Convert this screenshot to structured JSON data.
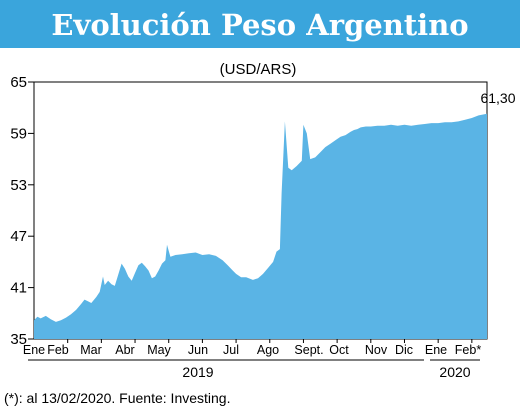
{
  "chart_data": {
    "type": "area",
    "title": "Evolución Peso Argentino",
    "subtitle": "(USD/ARS)",
    "ylim": [
      35,
      65
    ],
    "y_ticks": [
      35,
      41,
      47,
      53,
      59,
      65
    ],
    "y_tick_labels": [
      "35",
      "41",
      "47",
      "53",
      "59",
      "65"
    ],
    "month_labels": [
      "Ene",
      "Feb",
      "Mar",
      "Abr",
      "May",
      "Jun",
      "Jul",
      "Ago",
      "Sept.",
      "Oct",
      "Nov",
      "Dic",
      "Ene",
      "Feb*"
    ],
    "year_labels": [
      "2019",
      "2020"
    ],
    "last_value_label": "61,30",
    "footnote": "(*): al 13/02/2020. Fuente: Investing.",
    "area_color": "#5ab4e5",
    "title_bg": "#3aa5dc",
    "x_range": [
      0,
      13.45
    ],
    "series": [
      {
        "values": [
          [
            0.0,
            37.2
          ],
          [
            0.1,
            37.6
          ],
          [
            0.2,
            37.4
          ],
          [
            0.35,
            37.7
          ],
          [
            0.5,
            37.3
          ],
          [
            0.65,
            37.0
          ],
          [
            0.8,
            37.2
          ],
          [
            0.95,
            37.5
          ],
          [
            1.1,
            37.9
          ],
          [
            1.25,
            38.4
          ],
          [
            1.4,
            39.1
          ],
          [
            1.5,
            39.6
          ],
          [
            1.6,
            39.4
          ],
          [
            1.7,
            39.2
          ],
          [
            1.85,
            39.9
          ],
          [
            1.95,
            40.5
          ],
          [
            2.05,
            42.3
          ],
          [
            2.1,
            41.3
          ],
          [
            2.2,
            41.8
          ],
          [
            2.3,
            41.4
          ],
          [
            2.4,
            41.2
          ],
          [
            2.5,
            42.5
          ],
          [
            2.6,
            43.8
          ],
          [
            2.7,
            43.2
          ],
          [
            2.8,
            42.3
          ],
          [
            2.9,
            41.8
          ],
          [
            3.0,
            42.7
          ],
          [
            3.1,
            43.6
          ],
          [
            3.2,
            43.9
          ],
          [
            3.3,
            43.5
          ],
          [
            3.4,
            43.0
          ],
          [
            3.5,
            42.1
          ],
          [
            3.6,
            42.3
          ],
          [
            3.7,
            43.0
          ],
          [
            3.8,
            43.8
          ],
          [
            3.9,
            44.2
          ],
          [
            3.95,
            46.0
          ],
          [
            4.05,
            44.6
          ],
          [
            4.2,
            44.8
          ],
          [
            4.4,
            44.9
          ],
          [
            4.6,
            45.0
          ],
          [
            4.8,
            45.1
          ],
          [
            5.0,
            44.8
          ],
          [
            5.2,
            44.9
          ],
          [
            5.4,
            44.7
          ],
          [
            5.6,
            44.2
          ],
          [
            5.75,
            43.6
          ],
          [
            5.9,
            43.0
          ],
          [
            6.0,
            42.6
          ],
          [
            6.15,
            42.2
          ],
          [
            6.3,
            42.2
          ],
          [
            6.5,
            41.9
          ],
          [
            6.65,
            42.1
          ],
          [
            6.8,
            42.6
          ],
          [
            6.95,
            43.3
          ],
          [
            7.1,
            44.0
          ],
          [
            7.2,
            45.2
          ],
          [
            7.3,
            45.5
          ],
          [
            7.35,
            52.0
          ],
          [
            7.45,
            60.4
          ],
          [
            7.55,
            55.0
          ],
          [
            7.65,
            54.7
          ],
          [
            7.8,
            55.2
          ],
          [
            7.95,
            55.8
          ],
          [
            8.0,
            60.0
          ],
          [
            8.1,
            59.0
          ],
          [
            8.2,
            56.0
          ],
          [
            8.35,
            56.2
          ],
          [
            8.5,
            56.8
          ],
          [
            8.65,
            57.4
          ],
          [
            8.8,
            57.8
          ],
          [
            8.95,
            58.2
          ],
          [
            9.1,
            58.6
          ],
          [
            9.25,
            58.8
          ],
          [
            9.4,
            59.2
          ],
          [
            9.5,
            59.4
          ],
          [
            9.6,
            59.5
          ],
          [
            9.7,
            59.7
          ],
          [
            9.85,
            59.8
          ],
          [
            10.0,
            59.8
          ],
          [
            10.2,
            59.9
          ],
          [
            10.4,
            59.9
          ],
          [
            10.6,
            60.0
          ],
          [
            10.8,
            59.9
          ],
          [
            11.0,
            60.0
          ],
          [
            11.2,
            59.9
          ],
          [
            11.4,
            60.0
          ],
          [
            11.6,
            60.1
          ],
          [
            11.8,
            60.2
          ],
          [
            12.0,
            60.2
          ],
          [
            12.2,
            60.3
          ],
          [
            12.4,
            60.3
          ],
          [
            12.6,
            60.4
          ],
          [
            12.8,
            60.6
          ],
          [
            13.0,
            60.8
          ],
          [
            13.2,
            61.1
          ],
          [
            13.45,
            61.3
          ]
        ]
      }
    ]
  }
}
